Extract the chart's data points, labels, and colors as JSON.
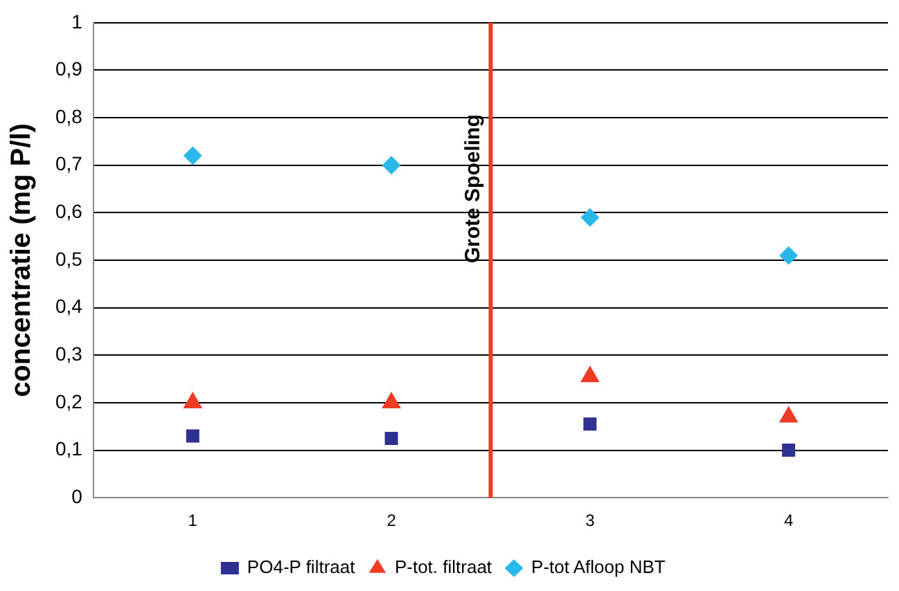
{
  "chart_data": {
    "type": "scatter",
    "ylabel": "concentratie (mg P/l)",
    "x": [
      1,
      2,
      3,
      4
    ],
    "xlim": [
      0.5,
      4.5
    ],
    "xticks": [
      1,
      2,
      3,
      4
    ],
    "ylim": [
      0,
      1
    ],
    "yticks": [
      {
        "value": 0,
        "label": "0"
      },
      {
        "value": 0.1,
        "label": "0,1"
      },
      {
        "value": 0.2,
        "label": "0,2"
      },
      {
        "value": 0.3,
        "label": "0,3"
      },
      {
        "value": 0.4,
        "label": "0,4"
      },
      {
        "value": 0.5,
        "label": "0,5"
      },
      {
        "value": 0.6,
        "label": "0,6"
      },
      {
        "value": 0.7,
        "label": "0,7"
      },
      {
        "value": 0.8,
        "label": "0,8"
      },
      {
        "value": 0.9,
        "label": "0,9"
      },
      {
        "value": 1,
        "label": "1"
      }
    ],
    "grid": "y",
    "legend": "bottom",
    "series": [
      {
        "name": "PO4-P filtraat",
        "color": "#2e3192",
        "marker": "square",
        "values": [
          0.13,
          0.125,
          0.155,
          0.1
        ]
      },
      {
        "name": "P-tot. filtraat",
        "color": "#ed3b24",
        "marker": "triangle",
        "values": [
          0.2,
          0.2,
          0.255,
          0.17
        ]
      },
      {
        "name": "P-tot Afloop NBT",
        "color": "#29b8ea",
        "marker": "diamond",
        "values": [
          0.72,
          0.7,
          0.59,
          0.51
        ]
      }
    ],
    "ref_lines": [
      {
        "axis": "x",
        "value": 2.5,
        "label": "Grote Spoeling",
        "color": "#ed3b24"
      }
    ]
  }
}
